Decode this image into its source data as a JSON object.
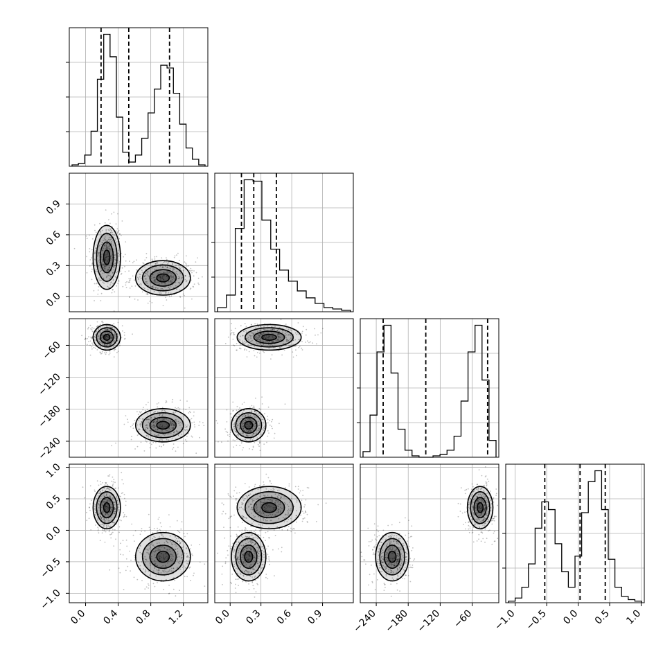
{
  "chart_data": {
    "type": "corner",
    "grid": true,
    "n_params": 4,
    "params": [
      {
        "axis_limits": [
          -0.2,
          1.5
        ],
        "ticks": [
          0.0,
          0.4,
          0.8,
          1.2
        ],
        "tick_labels": [
          "0.0",
          "0.4",
          "0.8",
          "1.2"
        ],
        "quantiles": [
          0.19,
          0.53,
          1.03
        ],
        "hist_counts": [
          1,
          2,
          8,
          25,
          62,
          94,
          78,
          35,
          10,
          3,
          8,
          20,
          38,
          55,
          72,
          70,
          52,
          30,
          13,
          5,
          1
        ]
      },
      {
        "axis_limits": [
          -0.15,
          1.2
        ],
        "ticks": [
          0.0,
          0.3,
          0.6,
          0.9
        ],
        "tick_labels": [
          "0.0",
          "0.3",
          "0.6",
          "0.9"
        ],
        "quantiles": [
          0.11,
          0.23,
          0.45
        ],
        "hist_counts": [
          3,
          12,
          60,
          95,
          94,
          66,
          45,
          30,
          22,
          15,
          10,
          6,
          3,
          2,
          1
        ]
      },
      {
        "axis_limits": [
          -270,
          -10
        ],
        "ticks": [
          -240,
          -180,
          -120,
          -60
        ],
        "tick_labels": [
          "−240",
          "−180",
          "−120",
          "−60"
        ],
        "quantiles": [
          -227,
          -147,
          -31
        ],
        "hist_counts": [
          4,
          30,
          75,
          94,
          60,
          20,
          5,
          1,
          0,
          0,
          1,
          2,
          5,
          15,
          40,
          75,
          94,
          55,
          12
        ]
      },
      {
        "axis_limits": [
          -1.15,
          1.05
        ],
        "ticks": [
          -1.0,
          -0.5,
          0.0,
          0.5,
          1.0
        ],
        "tick_labels": [
          "−1.0",
          "−0.5",
          "0.0",
          "0.5",
          "1.0"
        ],
        "quantiles": [
          -0.53,
          0.03,
          0.43
        ],
        "hist_counts": [
          1,
          3,
          10,
          25,
          48,
          65,
          60,
          38,
          20,
          10,
          30,
          58,
          78,
          85,
          60,
          28,
          10,
          4,
          2,
          1
        ]
      }
    ],
    "modes": [
      {
        "values": [
          0.26,
          0.38,
          -45,
          0.36
        ],
        "spread": [
          0.07,
          0.13,
          10,
          0.14
        ],
        "weight": 0.5
      },
      {
        "values": [
          0.95,
          0.18,
          -210,
          -0.42
        ],
        "spread": [
          0.14,
          0.07,
          13,
          0.16
        ],
        "weight": 0.5
      }
    ]
  }
}
